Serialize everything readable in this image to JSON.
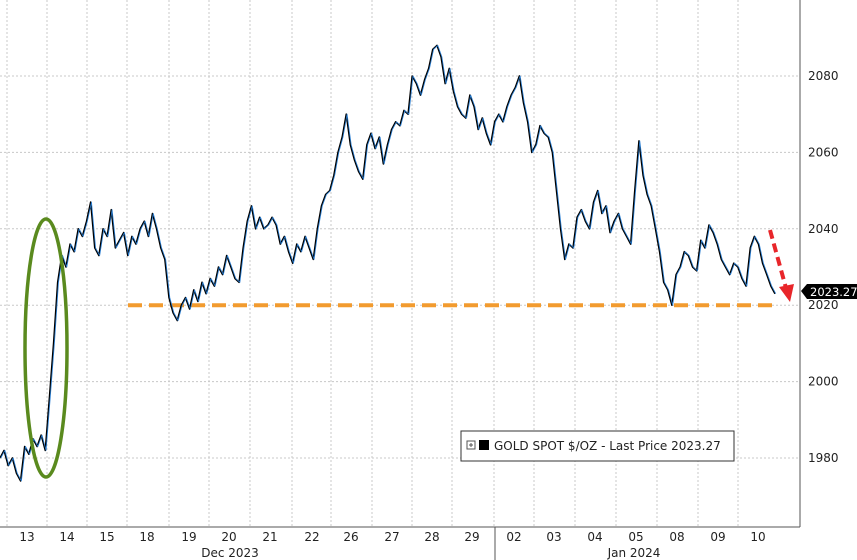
{
  "chart_data": {
    "type": "line",
    "title": "",
    "xlabel": "",
    "ylabel": "",
    "ylim": [
      1965,
      2097
    ],
    "grid": true,
    "y_ticks": [
      1980,
      2000,
      2020,
      2040,
      2060,
      2080
    ],
    "x_ticks": [
      "13",
      "14",
      "15",
      "18",
      "19",
      "20",
      "21",
      "22",
      "26",
      "27",
      "28",
      "29",
      "02",
      "03",
      "04",
      "05",
      "08",
      "09",
      "10"
    ],
    "month_labels": [
      {
        "label": "Dec 2023",
        "at_day": 20
      },
      {
        "label": "Jan 2024",
        "at_day": 5
      }
    ],
    "legend": {
      "text": "GOLD SPOT $/OZ - Last Price 2023.27",
      "placement": "bottom-right"
    },
    "last_price": {
      "label": "2023.27",
      "value": 2023.27
    },
    "support_level": 2020,
    "colors": {
      "line_primary": "#000000",
      "line_highlight": "#2a7fd4",
      "support": "#f29b2f",
      "ellipse": "#5a8a1e",
      "arrow": "#e8262a",
      "price_tag": "#000000"
    },
    "series": [
      {
        "values": [
          1980,
          1982,
          1978,
          1980,
          1976,
          1974,
          1983,
          1981,
          1985,
          1983,
          1986,
          1982,
          1996,
          2010,
          2026,
          2033,
          2030,
          2036,
          2034,
          2040,
          2038,
          2042,
          2047,
          2035,
          2033,
          2040,
          2038,
          2045,
          2035,
          2037,
          2039,
          2033,
          2038,
          2036,
          2040,
          2042,
          2038,
          2044,
          2040,
          2035,
          2032,
          2022,
          2018,
          2016,
          2020,
          2022,
          2019,
          2024,
          2021,
          2026,
          2023,
          2027,
          2025,
          2030,
          2028,
          2033,
          2030,
          2027,
          2026,
          2035,
          2042,
          2046,
          2040,
          2043,
          2040,
          2041,
          2043,
          2041,
          2036,
          2038,
          2034,
          2031,
          2036,
          2034,
          2038,
          2035,
          2032,
          2040,
          2046,
          2049,
          2050,
          2054,
          2060,
          2064,
          2070,
          2062,
          2058,
          2055,
          2053,
          2062,
          2065,
          2061,
          2064,
          2057,
          2062,
          2066,
          2068,
          2067,
          2071,
          2070,
          2080,
          2078,
          2075,
          2079,
          2082,
          2087,
          2088,
          2085,
          2078,
          2082,
          2076,
          2072,
          2070,
          2069,
          2075,
          2072,
          2066,
          2069,
          2065,
          2062,
          2068,
          2070,
          2068,
          2072,
          2075,
          2077,
          2080,
          2073,
          2068,
          2060,
          2062,
          2067,
          2065,
          2064,
          2060,
          2050,
          2040,
          2032,
          2036,
          2035,
          2043,
          2045,
          2042,
          2040,
          2047,
          2050,
          2044,
          2046,
          2039,
          2042,
          2044,
          2040,
          2038,
          2036,
          2050,
          2063,
          2054,
          2049,
          2046,
          2040,
          2034,
          2026,
          2024,
          2020,
          2028,
          2030,
          2034,
          2033,
          2030,
          2029,
          2037,
          2035,
          2041,
          2039,
          2036,
          2032,
          2030,
          2028,
          2031,
          2030,
          2027,
          2025,
          2035,
          2038,
          2036,
          2031,
          2028,
          2025,
          2023
        ]
      }
    ]
  }
}
